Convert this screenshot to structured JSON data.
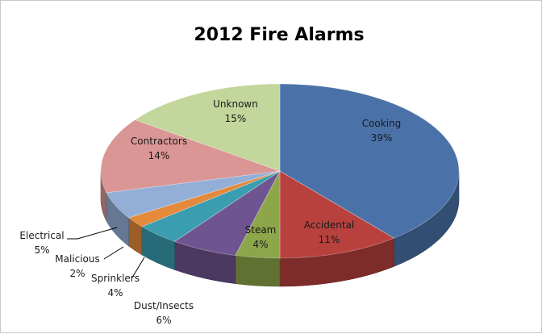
{
  "chart_data": {
    "type": "pie",
    "title": "2012 Fire Alarms",
    "slices": [
      {
        "label": "Cooking",
        "percent_label": "39%",
        "value": 39,
        "color": "#4a72a8"
      },
      {
        "label": "Accidental",
        "percent_label": "11%",
        "value": 11,
        "color": "#b8413e"
      },
      {
        "label": "Steam",
        "percent_label": "4%",
        "value": 4,
        "color": "#8ea64a"
      },
      {
        "label": "Dust/Insects",
        "percent_label": "6%",
        "value": 6,
        "color": "#6e5490"
      },
      {
        "label": "Sprinklers",
        "percent_label": "4%",
        "value": 4,
        "color": "#3a9eb0"
      },
      {
        "label": "Malicious",
        "percent_label": "2%",
        "value": 2,
        "color": "#e5893a"
      },
      {
        "label": "Electrical",
        "percent_label": "5%",
        "value": 5,
        "color": "#93afd8"
      },
      {
        "label": "Contractors",
        "percent_label": "14%",
        "value": 14,
        "color": "#d99694"
      },
      {
        "label": "Unknown",
        "percent_label": "15%",
        "value": 15,
        "color": "#c3d69b"
      }
    ],
    "style": "3d",
    "legend": "none",
    "data_labels": "category-and-percent"
  }
}
